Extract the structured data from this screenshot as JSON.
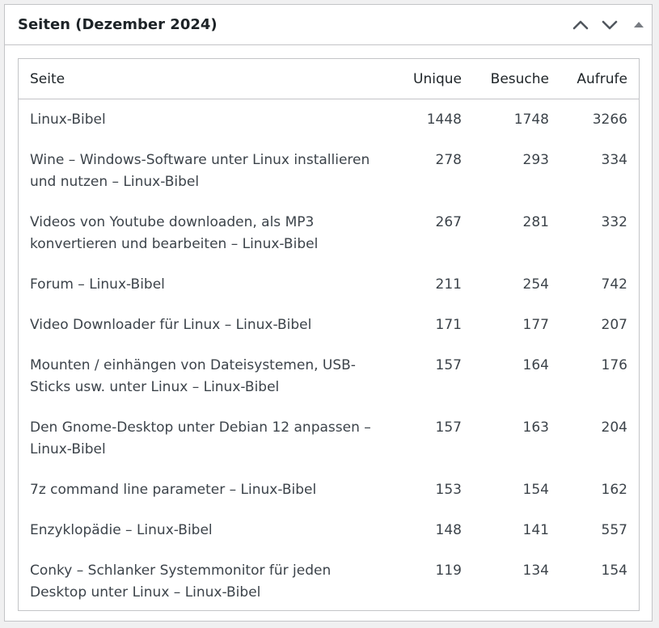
{
  "widget": {
    "title": "Seiten (Dezember 2024)"
  },
  "table": {
    "headers": {
      "page": "Seite",
      "unique": "Unique",
      "visits": "Besuche",
      "views": "Aufrufe"
    },
    "rows": [
      {
        "page": "Linux-Bibel",
        "unique": "1448",
        "visits": "1748",
        "views": "3266"
      },
      {
        "page": "Wine – Windows-Software unter Linux installieren und nutzen – Linux-Bibel",
        "unique": "278",
        "visits": "293",
        "views": "334"
      },
      {
        "page": "Videos von Youtube downloaden, als MP3 konvertieren und bearbeiten – Linux-Bibel",
        "unique": "267",
        "visits": "281",
        "views": "332"
      },
      {
        "page": "Forum – Linux-Bibel",
        "unique": "211",
        "visits": "254",
        "views": "742"
      },
      {
        "page": "Video Downloader für Linux – Linux-Bibel",
        "unique": "171",
        "visits": "177",
        "views": "207"
      },
      {
        "page": "Mounten / einhängen von Dateisystemen, USB-Sticks usw. unter Linux – Linux-Bibel",
        "unique": "157",
        "visits": "164",
        "views": "176"
      },
      {
        "page": "Den Gnome-Desktop unter Debian 12 anpassen – Linux-Bibel",
        "unique": "157",
        "visits": "163",
        "views": "204"
      },
      {
        "page": "7z command line parameter – Linux-Bibel",
        "unique": "153",
        "visits": "154",
        "views": "162"
      },
      {
        "page": "Enzyklopädie – Linux-Bibel",
        "unique": "148",
        "visits": "141",
        "views": "557"
      },
      {
        "page": "Conky – Schlanker Systemmonitor für jeden Desktop unter Linux – Linux-Bibel",
        "unique": "119",
        "visits": "134",
        "views": "154"
      }
    ]
  },
  "icons": {
    "move_up": "chevron-up-icon",
    "move_down": "chevron-down-icon",
    "toggle": "triangle-up-icon"
  },
  "colors": {
    "border": "#c3c4c7",
    "text": "#3c434a",
    "heading": "#1d2327",
    "icon": "#787c82"
  }
}
